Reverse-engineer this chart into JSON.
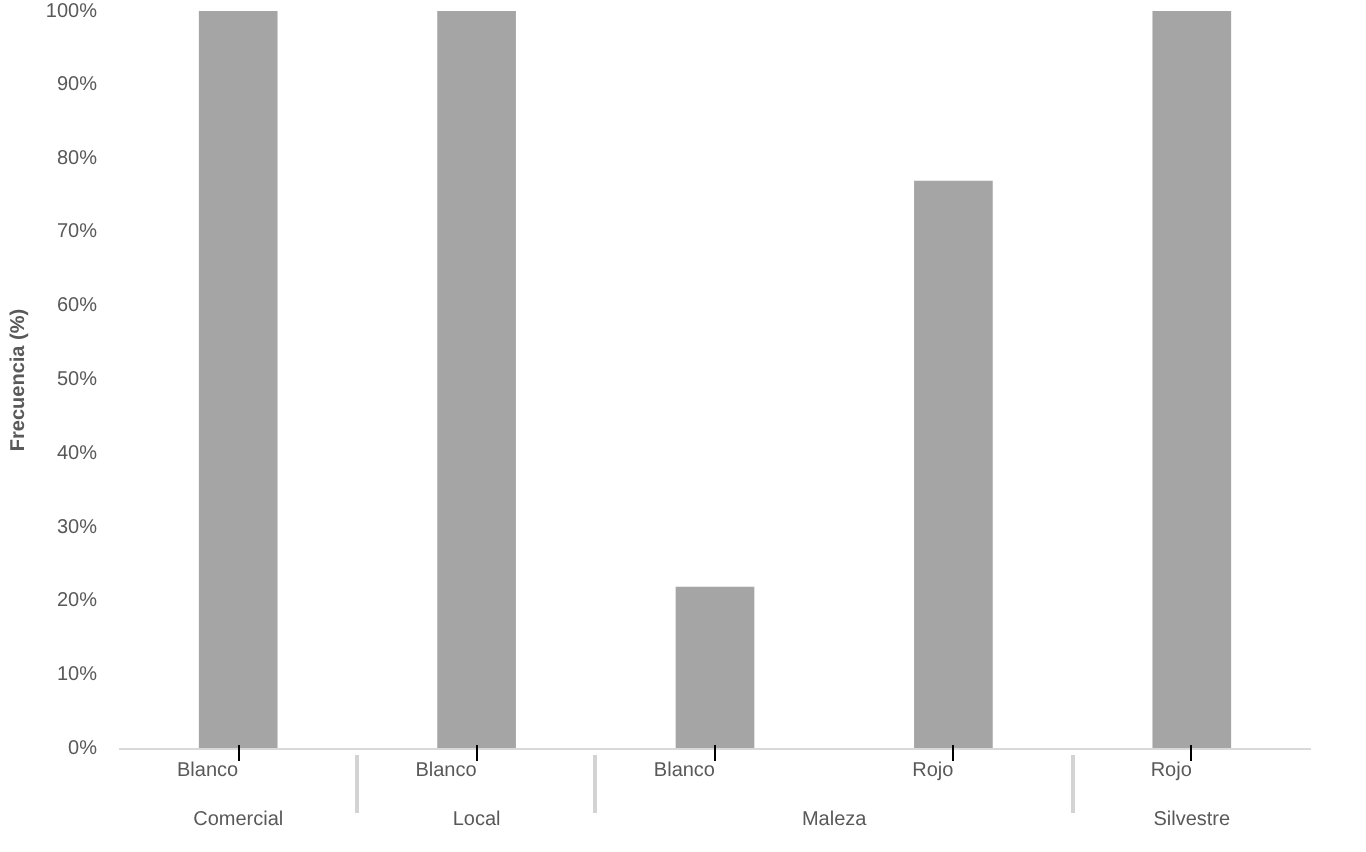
{
  "chart_data": {
    "type": "bar",
    "ylabel": "Frecuencia (%)",
    "categories": [
      [
        "Comercial",
        "Blanco"
      ],
      [
        "Local",
        "Blanco"
      ],
      [
        "Maleza",
        "Blanco"
      ],
      [
        null,
        "Rojo"
      ],
      [
        "Silvestre",
        "Rojo"
      ]
    ],
    "values": [
      100,
      100,
      22,
      77,
      100
    ],
    "color": "#a5a5a5",
    "ylim": [
      0,
      100
    ],
    "yticks": [
      {
        "value": 0,
        "label": "0%"
      },
      {
        "value": 10,
        "label": "10%"
      },
      {
        "value": 20,
        "label": "20%"
      },
      {
        "value": 30,
        "label": "30%"
      },
      {
        "value": 40,
        "label": "40%"
      },
      {
        "value": 50,
        "label": "50%"
      },
      {
        "value": 60,
        "label": "60%"
      },
      {
        "value": 70,
        "label": "70%"
      },
      {
        "value": 80,
        "label": "80%"
      },
      {
        "value": 90,
        "label": "90%"
      },
      {
        "value": 100,
        "label": "100%"
      }
    ],
    "grid": false
  }
}
